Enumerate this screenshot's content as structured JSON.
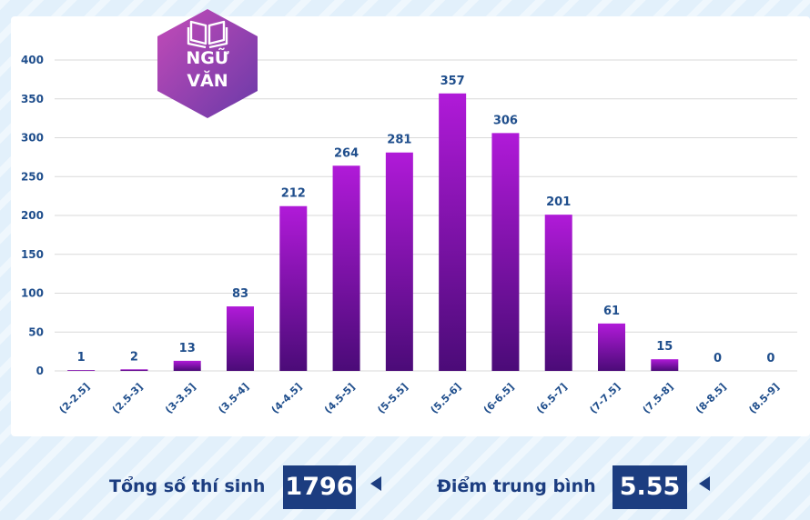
{
  "badge": {
    "icon": "book-icon",
    "line1": "NGỮ",
    "line2": "VĂN"
  },
  "chart_data": {
    "type": "bar",
    "title": "",
    "xlabel": "",
    "ylabel": "",
    "ylim": [
      0,
      400
    ],
    "yticks": [
      0,
      50,
      100,
      150,
      200,
      250,
      300,
      350,
      400
    ],
    "grid": true,
    "categories": [
      "(2-2.5]",
      "(2.5-3]",
      "(3-3.5]",
      "(3.5-4]",
      "(4-4.5]",
      "(4.5-5]",
      "(5-5.5]",
      "(5.5-6]",
      "(6-6.5]",
      "(6.5-7]",
      "(7-7.5]",
      "(7.5-8]",
      "(8-8.5]",
      "(8.5-9]"
    ],
    "values": [
      1,
      2,
      13,
      83,
      212,
      264,
      281,
      357,
      306,
      201,
      61,
      15,
      0,
      0
    ],
    "colors": {
      "bar_top": "#b01ad8",
      "bar_bottom": "#4b0b78",
      "value_label": "#1f4e8c",
      "tick_label": "#1f4e8c",
      "grid": "#d9d9d9"
    }
  },
  "stats": {
    "total_label": "Tổng số thí sinh",
    "total_value": "1796",
    "avg_label": "Điểm trung bình",
    "avg_value": "5.55"
  }
}
